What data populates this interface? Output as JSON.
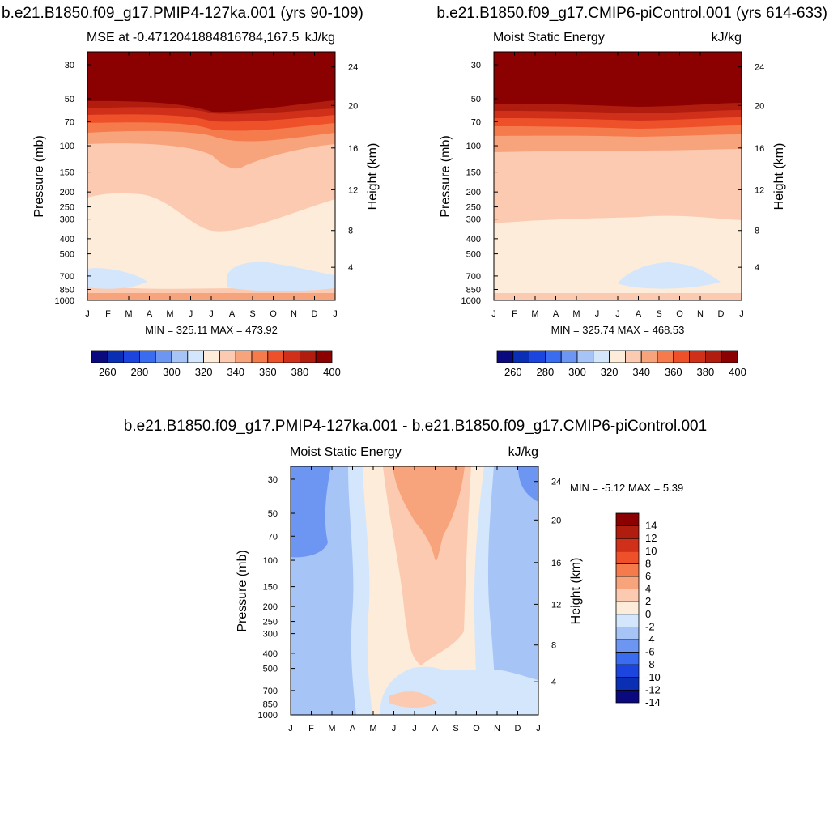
{
  "titles": {
    "left": "b.e21.B1850.f09_g17.PMIP4-127ka.001 (yrs 90-109)",
    "right": "b.e21.B1850.f09_g17.CMIP6-piControl.001 (yrs 614-633)",
    "bottom": "b.e21.B1850.f09_g17.PMIP4-127ka.001 - b.e21.B1850.f09_g17.CMIP6-piControl.001"
  },
  "chart_data": [
    {
      "type": "heatmap",
      "id": "panel-left",
      "subtitle": "MSE at -0.4712041884816784,167.5",
      "units": "kJ/kg",
      "ylabel": "Pressure (mb)",
      "y2label": "Height (km)",
      "xticks": [
        "J",
        "F",
        "M",
        "A",
        "M",
        "J",
        "J",
        "A",
        "S",
        "O",
        "N",
        "D",
        "J"
      ],
      "yticks": [
        "30",
        "50",
        "70",
        "100",
        "150",
        "200",
        "250",
        "300",
        "400",
        "500",
        "700",
        "850",
        "1000"
      ],
      "y2ticks": [
        "24",
        "20",
        "16",
        "12",
        "8",
        "4"
      ],
      "stats": "MIN = 325.11 MAX = 473.92",
      "min": 325.11,
      "max": 473.92,
      "colorbar": {
        "labels": [
          "260",
          "280",
          "300",
          "320",
          "340",
          "360",
          "380",
          "400"
        ],
        "levels": [
          250,
          260,
          270,
          280,
          290,
          300,
          310,
          320,
          330,
          340,
          350,
          360,
          370,
          380,
          390,
          400,
          410
        ]
      }
    },
    {
      "type": "heatmap",
      "id": "panel-right",
      "subtitle": "Moist Static Energy",
      "units": "kJ/kg",
      "ylabel": "Pressure (mb)",
      "y2label": "Height (km)",
      "xticks": [
        "J",
        "F",
        "M",
        "A",
        "M",
        "J",
        "J",
        "A",
        "S",
        "O",
        "N",
        "D",
        "J"
      ],
      "yticks": [
        "30",
        "50",
        "70",
        "100",
        "150",
        "200",
        "250",
        "300",
        "400",
        "500",
        "700",
        "850",
        "1000"
      ],
      "y2ticks": [
        "24",
        "20",
        "16",
        "12",
        "8",
        "4"
      ],
      "stats": "MIN = 325.74 MAX = 468.53",
      "min": 325.74,
      "max": 468.53,
      "colorbar": {
        "labels": [
          "260",
          "280",
          "300",
          "320",
          "340",
          "360",
          "380",
          "400"
        ],
        "levels": [
          250,
          260,
          270,
          280,
          290,
          300,
          310,
          320,
          330,
          340,
          350,
          360,
          370,
          380,
          390,
          400,
          410
        ]
      }
    },
    {
      "type": "heatmap",
      "id": "panel-diff",
      "subtitle": "Moist Static Energy",
      "units": "kJ/kg",
      "ylabel": "Pressure (mb)",
      "y2label": "Height (km)",
      "xticks": [
        "J",
        "F",
        "M",
        "A",
        "M",
        "J",
        "J",
        "A",
        "S",
        "O",
        "N",
        "D",
        "J"
      ],
      "yticks": [
        "30",
        "50",
        "70",
        "100",
        "150",
        "200",
        "250",
        "300",
        "400",
        "500",
        "700",
        "850",
        "1000"
      ],
      "y2ticks": [
        "24",
        "20",
        "16",
        "12",
        "8",
        "4"
      ],
      "stats": "MIN =  -5.12 MAX =   5.39",
      "min": -5.12,
      "max": 5.39,
      "colorbar": {
        "labels": [
          "14",
          "12",
          "10",
          "8",
          "6",
          "4",
          "2",
          "0",
          "-2",
          "-4",
          "-6",
          "-8",
          "-10",
          "-12",
          "-14"
        ],
        "levels": [
          -16,
          -14,
          -12,
          -10,
          -8,
          -6,
          -4,
          -2,
          0,
          2,
          4,
          6,
          8,
          10,
          12,
          14,
          16
        ]
      }
    }
  ],
  "palette": [
    "#0a0a7e",
    "#0b2fb4",
    "#1c45e0",
    "#3a6cf0",
    "#6c96f2",
    "#a7c4f6",
    "#d3e6fb",
    "#fdecd9",
    "#fbcab0",
    "#f7a37c",
    "#f57a4c",
    "#ee512a",
    "#d0301a",
    "#b01c0e",
    "#8b0000"
  ],
  "diff_palette": [
    "#8b0000",
    "#b01c0e",
    "#d0301a",
    "#ee512a",
    "#f57a4c",
    "#f7a37c",
    "#fbcab0",
    "#fdecd9",
    "#d3e6fb",
    "#a7c4f6",
    "#6c96f2",
    "#3a6cf0",
    "#1c45e0",
    "#0b2fb4",
    "#0a0a7e"
  ]
}
